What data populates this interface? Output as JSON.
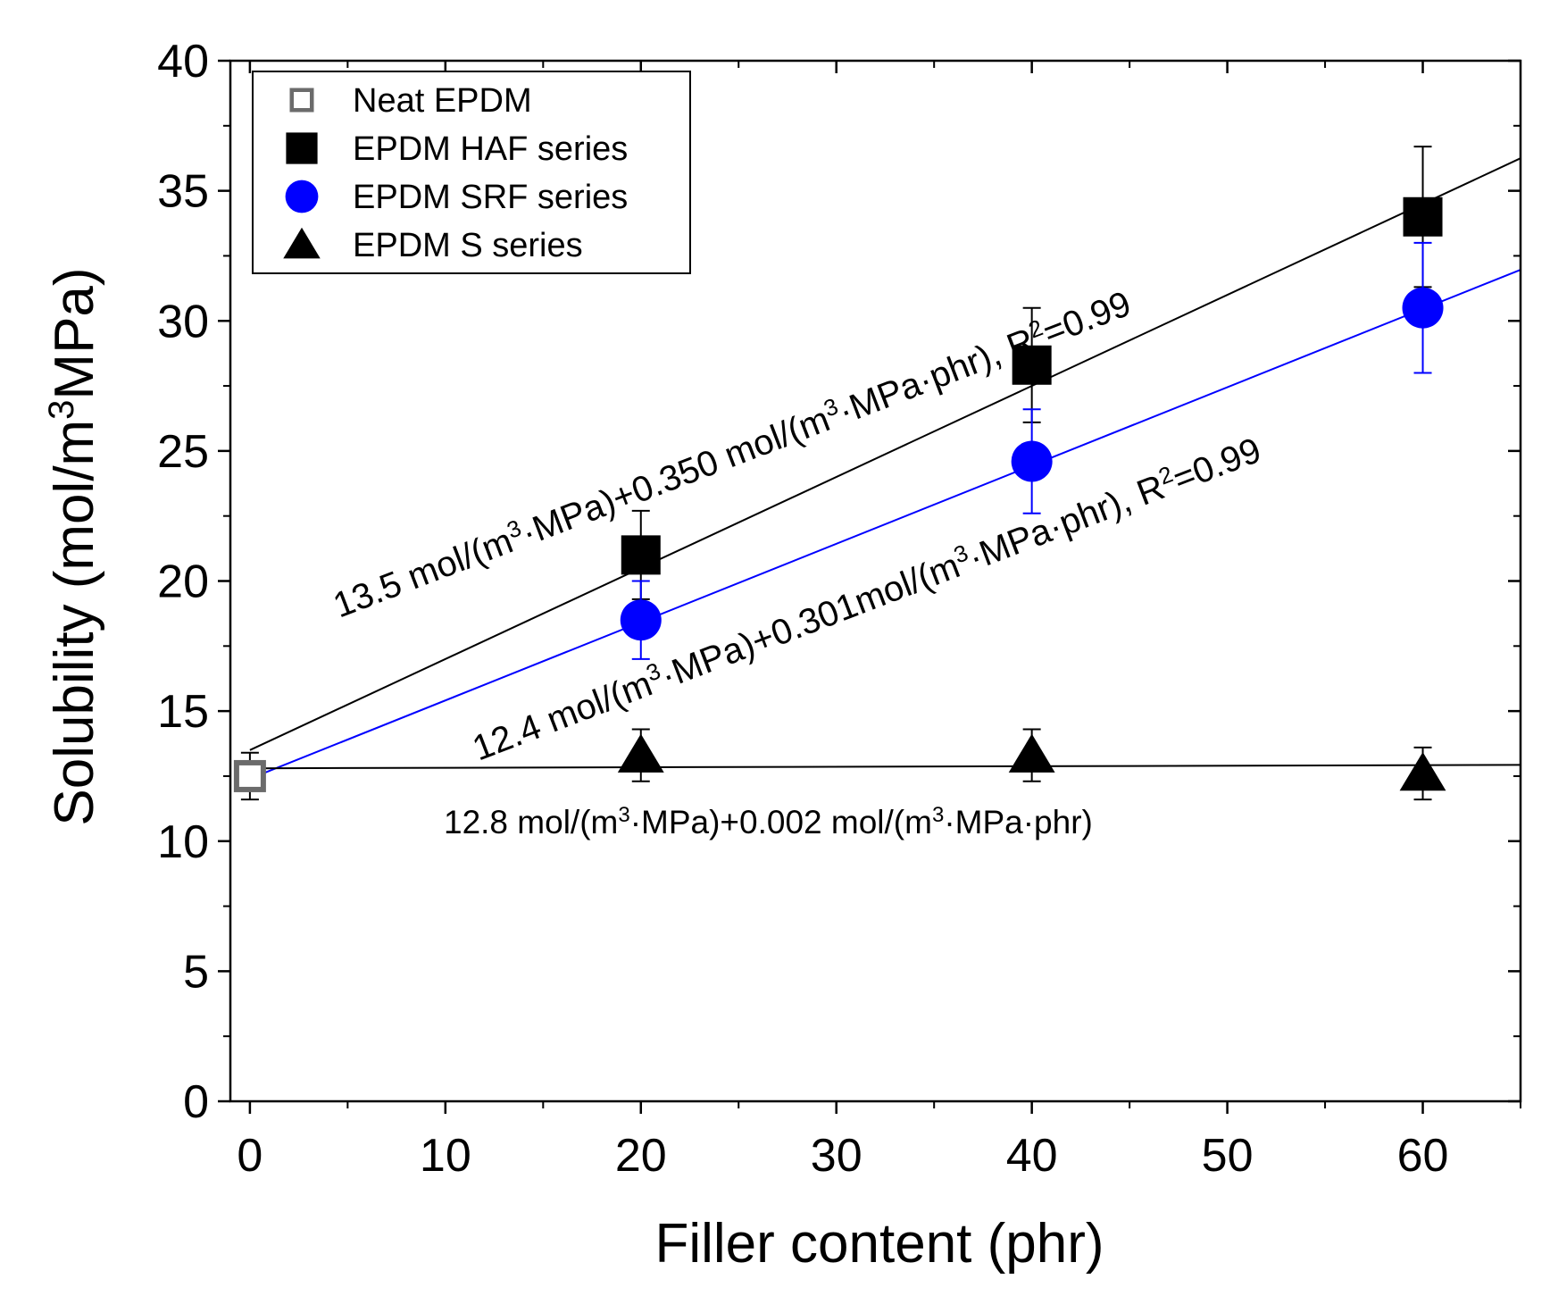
{
  "chart_data": {
    "type": "scatter",
    "xlabel": "Filler content (phr)",
    "ylabel_main": "Solubility (mol/m",
    "ylabel_sup": "3",
    "ylabel_end": "MPa)",
    "xlim": [
      -1,
      65
    ],
    "ylim": [
      0,
      40
    ],
    "xticks": [
      0,
      10,
      20,
      30,
      40,
      50,
      60
    ],
    "yticks": [
      0,
      5,
      10,
      15,
      20,
      25,
      30,
      35,
      40
    ],
    "xticks_minor": [
      5,
      15,
      25,
      35,
      45,
      55,
      65
    ],
    "yticks_minor": [
      2.5,
      7.5,
      12.5,
      17.5,
      22.5,
      27.5,
      32.5,
      37.5
    ],
    "legend_position": "top-left",
    "series": [
      {
        "name": "Neat EPDM",
        "marker": "square-open",
        "color": "#6b6b6b",
        "x": [
          0
        ],
        "y": [
          12.5
        ],
        "err": [
          0.9
        ]
      },
      {
        "name": "EPDM HAF series",
        "marker": "square",
        "color": "#000000",
        "x": [
          20,
          40,
          60
        ],
        "y": [
          21.0,
          28.3,
          34.0
        ],
        "err": [
          1.7,
          2.2,
          2.7
        ]
      },
      {
        "name": "EPDM SRF series",
        "marker": "circle",
        "color": "#0000ff",
        "x": [
          20,
          40,
          60
        ],
        "y": [
          18.5,
          24.6,
          30.5
        ],
        "err": [
          1.5,
          2.0,
          2.5
        ]
      },
      {
        "name": "EPDM S series",
        "marker": "triangle",
        "color": "#000000",
        "x": [
          20,
          40,
          60
        ],
        "y": [
          13.3,
          13.3,
          12.6
        ],
        "err": [
          1.0,
          1.0,
          1.0
        ]
      }
    ],
    "fits": [
      {
        "name": "HAF fit",
        "intercept": 13.5,
        "slope": 0.35,
        "color": "#000000"
      },
      {
        "name": "SRF fit",
        "intercept": 12.4,
        "slope": 0.301,
        "color": "#0000ff"
      },
      {
        "name": "S fit",
        "intercept": 12.8,
        "slope": 0.002,
        "color": "#000000"
      }
    ],
    "annotations": [
      {
        "parts": [
          "13.5 mol/(m",
          "3",
          "·MPa)+0.350 mol/(m",
          "3",
          "·MPa·phr), R",
          "2",
          "=0.99"
        ]
      },
      {
        "parts": [
          "12.4 mol/(m",
          "3",
          "·MPa)+0.301mol/(m",
          "3",
          "·MPa·phr), R",
          "2",
          "=0.99"
        ]
      },
      {
        "parts": [
          "12.8 mol/(m",
          "3",
          "·MPa)+0.002 mol/(m",
          "3",
          "·MPa·phr)"
        ]
      }
    ]
  }
}
